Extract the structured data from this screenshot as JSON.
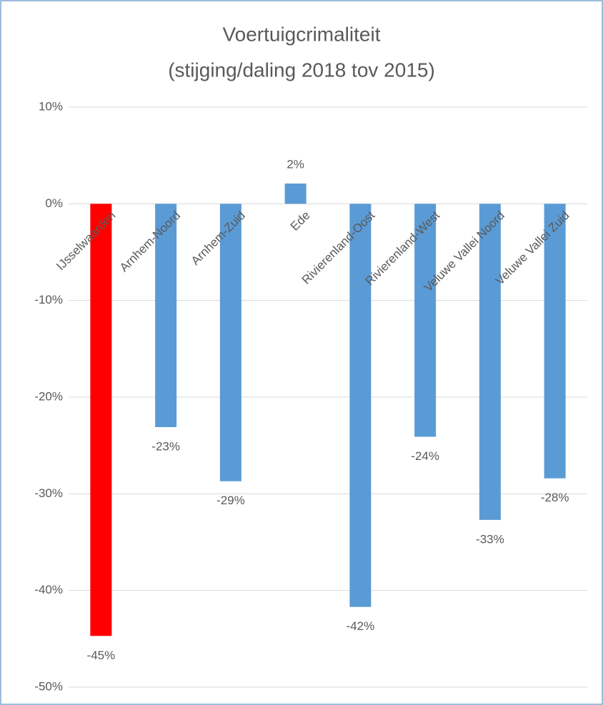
{
  "chart_data": {
    "type": "bar",
    "title": [
      "Voertuigcrimaliteit",
      "(stijging/daling 2018 tov 2015)"
    ],
    "categories": [
      "IJsselwaarden",
      "Arnhem-Noord",
      "Arnhem-Zuid",
      "Ede",
      "Rivierenland-Oost",
      "Rivierenland-West",
      "Veluwe Vallei Noord",
      "Veluwe Vallei Zuid"
    ],
    "values": [
      -44.7,
      -23.1,
      -28.7,
      2.1,
      -41.7,
      -24.1,
      -32.7,
      -28.4
    ],
    "value_labels": [
      "-45%",
      "-23%",
      "-29%",
      "2%",
      "-42%",
      "-24%",
      "-33%",
      "-28%"
    ],
    "colors": [
      "#ff0000",
      "#5b9bd5",
      "#5b9bd5",
      "#5b9bd5",
      "#5b9bd5",
      "#5b9bd5",
      "#5b9bd5",
      "#5b9bd5"
    ],
    "ylim": [
      -50,
      10
    ],
    "yticks": [
      {
        "value": 10,
        "label": "10%"
      },
      {
        "value": 0,
        "label": "0%"
      },
      {
        "value": -10,
        "label": "-10%"
      },
      {
        "value": -20,
        "label": "-20%"
      },
      {
        "value": -30,
        "label": "-30%"
      },
      {
        "value": -40,
        "label": "-40%"
      },
      {
        "value": -50,
        "label": "-50%"
      }
    ],
    "grid": true
  }
}
